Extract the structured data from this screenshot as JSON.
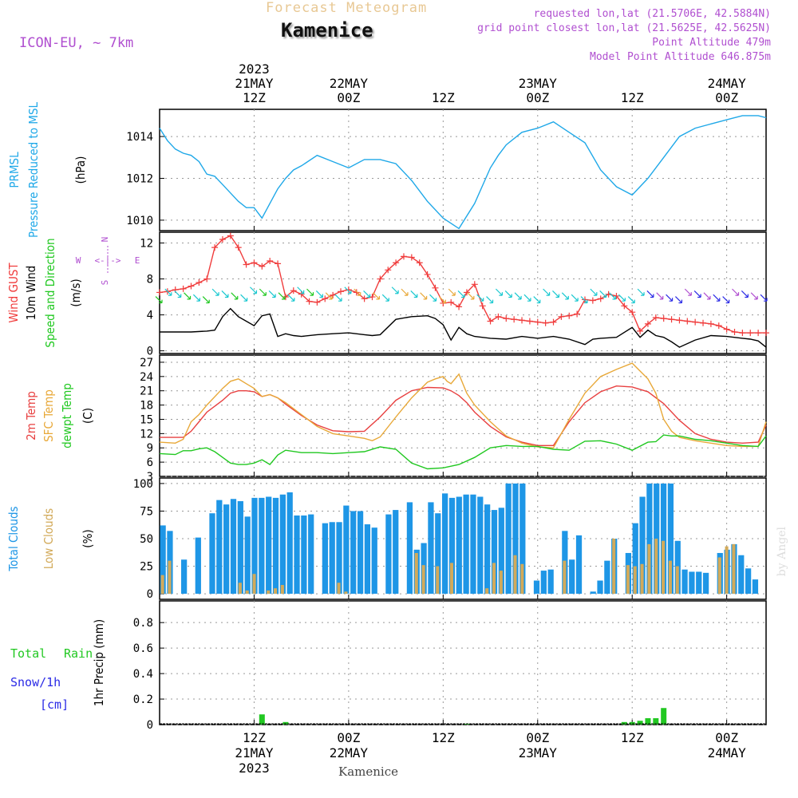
{
  "header": {
    "title": "Forecast Meteogram",
    "location": "Kamenice",
    "model": "ICON-EU, ~ 7km",
    "requested": "requested lon,lat (21.5706E, 42.5884N)",
    "gridpoint": "grid point closest lon,lat (21.5625E, 42.5625N)",
    "altitude": "Point Altitude 479m",
    "model_altitude": "Model Point Altitude 646.875m",
    "credit": "by Angel",
    "footer": "Kamenice"
  },
  "time_axis": {
    "top_labels": [
      {
        "hour": 12,
        "lines": [
          "2023",
          "21MAY",
          "12Z"
        ]
      },
      {
        "hour": 24,
        "lines": [
          "22MAY",
          "00Z"
        ]
      },
      {
        "hour": 36,
        "lines": [
          "12Z"
        ]
      },
      {
        "hour": 48,
        "lines": [
          "23MAY",
          "00Z"
        ]
      },
      {
        "hour": 60,
        "lines": [
          "12Z"
        ]
      },
      {
        "hour": 72,
        "lines": [
          "24MAY",
          "00Z"
        ]
      }
    ],
    "bottom_labels": [
      {
        "hour": 12,
        "lines": [
          "12Z",
          "21MAY",
          "2023"
        ]
      },
      {
        "hour": 24,
        "lines": [
          "00Z",
          "22MAY"
        ]
      },
      {
        "hour": 36,
        "lines": [
          "12Z"
        ]
      },
      {
        "hour": 48,
        "lines": [
          "00Z",
          "23MAY"
        ]
      },
      {
        "hour": 60,
        "lines": [
          "12Z"
        ]
      },
      {
        "hour": 72,
        "lines": [
          "00Z",
          "24MAY"
        ]
      }
    ]
  },
  "colors": {
    "pressure": "#1fa8e8",
    "gust": "#f03c3c",
    "wind": "#000000",
    "temp": "#e84040",
    "sfc": "#e8a838",
    "dew": "#20c820",
    "total_clouds": "#1e96e6",
    "low_clouds": "#d2aa5a",
    "rain": "#22c822",
    "purple": "#b04fd0",
    "snow": "#2a2ae6"
  },
  "chart_data": [
    {
      "panel": "pressure",
      "type": "line",
      "ylabels": [
        "PRMSL",
        "Pressure Reduced to MSL"
      ],
      "unit": "(hPa)",
      "yticks": [
        1010,
        1012,
        1014
      ],
      "ylim": [
        1009.5,
        1015.3
      ],
      "series": [
        {
          "name": "PRMSL",
          "x": [
            0,
            1,
            2,
            3,
            4,
            5,
            6,
            7,
            8,
            9,
            10,
            11,
            12,
            13,
            14,
            15,
            16,
            17,
            18,
            20,
            22,
            24,
            26,
            28,
            30,
            32,
            34,
            36,
            38,
            40,
            42,
            43,
            44,
            46,
            48,
            50,
            52,
            54,
            56,
            58,
            60,
            62,
            64,
            66,
            68,
            70,
            72,
            74,
            76,
            77
          ],
          "values": [
            1014.4,
            1013.8,
            1013.4,
            1013.2,
            1013.1,
            1012.8,
            1012.2,
            1012.1,
            1011.7,
            1011.3,
            1010.9,
            1010.6,
            1010.6,
            1010.1,
            1010.8,
            1011.5,
            1012.0,
            1012.4,
            1012.6,
            1013.1,
            1012.8,
            1012.5,
            1012.9,
            1012.9,
            1012.7,
            1011.9,
            1010.9,
            1010.1,
            1009.6,
            1010.8,
            1012.5,
            1013.1,
            1013.6,
            1014.2,
            1014.4,
            1014.7,
            1014.2,
            1013.7,
            1012.4,
            1011.6,
            1011.2,
            1012.0,
            1013.0,
            1014.0,
            1014.4,
            1014.6,
            1014.8,
            1015.0,
            1015.0,
            1014.9
          ]
        }
      ]
    },
    {
      "panel": "wind",
      "type": "line",
      "ylabels": [
        "Wind GUST",
        "10m Wind",
        "Speed and Direction"
      ],
      "unit": "(m/s)",
      "yticks": [
        0,
        4,
        8,
        12
      ],
      "ylim": [
        -0.3,
        13.2
      ],
      "compass": {
        "n": "N",
        "s": "S",
        "e": "E",
        "w": "W"
      },
      "series": [
        {
          "name": "Wind GUST",
          "x": [
            0,
            1,
            2,
            3,
            4,
            5,
            6,
            7,
            8,
            9,
            10,
            11,
            12,
            13,
            14,
            15,
            16,
            17,
            18,
            19,
            20,
            21,
            22,
            23,
            24,
            25,
            26,
            27,
            28,
            29,
            30,
            31,
            32,
            33,
            34,
            35,
            36,
            37,
            38,
            39,
            40,
            41,
            42,
            43,
            44,
            45,
            46,
            47,
            48,
            49,
            50,
            51,
            52,
            53,
            54,
            55,
            56,
            57,
            58,
            59,
            60,
            61,
            62,
            63,
            64,
            65,
            66,
            67,
            68,
            69,
            70,
            71,
            72,
            73,
            74,
            75,
            76,
            77
          ],
          "values": [
            6.5,
            6.6,
            6.8,
            6.9,
            7.2,
            7.6,
            8.0,
            11.5,
            12.4,
            12.8,
            11.5,
            9.6,
            9.8,
            9.4,
            10.0,
            9.7,
            6.0,
            6.7,
            6.3,
            5.5,
            5.4,
            5.8,
            6.2,
            6.6,
            6.8,
            6.5,
            5.8,
            6.0,
            8.0,
            9.0,
            9.8,
            10.5,
            10.4,
            9.8,
            8.5,
            7.0,
            5.3,
            5.4,
            4.9,
            6.5,
            7.4,
            5.0,
            3.3,
            3.8,
            3.6,
            3.5,
            3.4,
            3.3,
            3.2,
            3.1,
            3.2,
            3.8,
            3.9,
            4.1,
            5.7,
            5.6,
            5.8,
            6.3,
            6.1,
            5.0,
            4.3,
            2.2,
            3.0,
            3.7,
            3.6,
            3.5,
            3.4,
            3.3,
            3.2,
            3.1,
            3.0,
            2.8,
            2.4,
            2.1,
            2.0,
            2.0,
            2.0,
            2.0
          ]
        },
        {
          "name": "10m Wind",
          "x": [
            0,
            2,
            4,
            6,
            7,
            8,
            9,
            10,
            11,
            12,
            13,
            14,
            15,
            16,
            17,
            18,
            20,
            22,
            24,
            26,
            27,
            28,
            30,
            32,
            34,
            35,
            36,
            37,
            38,
            39,
            40,
            42,
            44,
            46,
            48,
            50,
            52,
            54,
            55,
            56,
            58,
            60,
            61,
            62,
            63,
            64,
            65,
            66,
            68,
            70,
            72,
            74,
            75,
            76,
            77
          ],
          "values": [
            2.1,
            2.1,
            2.1,
            2.2,
            2.3,
            3.8,
            4.7,
            3.8,
            3.3,
            2.8,
            3.9,
            4.1,
            1.6,
            1.9,
            1.7,
            1.6,
            1.8,
            1.9,
            2.0,
            1.8,
            1.7,
            1.8,
            3.5,
            3.8,
            3.9,
            3.6,
            2.9,
            1.2,
            2.6,
            1.9,
            1.6,
            1.4,
            1.3,
            1.6,
            1.4,
            1.6,
            1.3,
            0.7,
            1.3,
            1.4,
            1.5,
            2.6,
            1.5,
            2.3,
            1.7,
            1.5,
            1.0,
            0.4,
            1.2,
            1.7,
            1.6,
            1.4,
            1.3,
            1.1,
            0.4
          ]
        }
      ]
    },
    {
      "panel": "temperature",
      "type": "line",
      "ylabels": [
        "2m Temp",
        "SFC Temp",
        "dewpt Temp"
      ],
      "unit": "(C)",
      "yticks": [
        3,
        6,
        9,
        12,
        15,
        18,
        21,
        24,
        27
      ],
      "ylim": [
        3,
        28.5
      ],
      "series": [
        {
          "name": "2m Temp",
          "x": [
            0,
            3,
            4,
            5,
            6,
            8,
            9,
            10,
            11,
            12,
            13,
            14,
            15,
            16,
            18,
            20,
            22,
            24,
            26,
            28,
            30,
            32,
            34,
            36,
            37,
            38,
            39,
            40,
            42,
            44,
            46,
            48,
            50,
            52,
            54,
            56,
            58,
            60,
            62,
            64,
            66,
            68,
            70,
            72,
            74,
            76,
            77
          ],
          "values": [
            11.2,
            11.2,
            12.5,
            14.5,
            16.5,
            19.0,
            20.5,
            21.0,
            21.0,
            20.8,
            19.8,
            20.2,
            19.5,
            18.2,
            15.8,
            13.8,
            12.6,
            12.4,
            12.5,
            15.5,
            19.0,
            21.0,
            21.7,
            21.6,
            21.0,
            20.0,
            18.5,
            16.5,
            13.5,
            11.3,
            10.2,
            9.5,
            9.5,
            14.5,
            18.5,
            20.8,
            22.0,
            21.8,
            20.8,
            18.3,
            14.8,
            12.0,
            10.8,
            10.2,
            10.0,
            10.2,
            13.8
          ]
        },
        {
          "name": "SFC Temp",
          "x": [
            0,
            2,
            3,
            4,
            5,
            6,
            8,
            9,
            10,
            11,
            12,
            13,
            14,
            15,
            16,
            18,
            20,
            22,
            24,
            26,
            27,
            28,
            30,
            32,
            34,
            35,
            36,
            36.5,
            37,
            38,
            39,
            40,
            42,
            44,
            46,
            48,
            50,
            52,
            54,
            56,
            58,
            60,
            62,
            63,
            64,
            65,
            66,
            68,
            70,
            72,
            74,
            76,
            77
          ],
          "values": [
            10.2,
            10.0,
            10.8,
            14.5,
            16.0,
            18.0,
            21.5,
            23.0,
            23.5,
            22.5,
            21.5,
            19.8,
            20.2,
            19.5,
            18.5,
            16.0,
            13.5,
            12.0,
            11.5,
            11.0,
            10.5,
            11.3,
            15.5,
            19.5,
            22.8,
            23.5,
            24.0,
            23.0,
            22.5,
            24.5,
            20.5,
            18.0,
            14.5,
            11.5,
            10.0,
            9.2,
            9.0,
            15.0,
            20.5,
            24.0,
            25.5,
            26.8,
            23.5,
            20.5,
            15.0,
            12.5,
            11.2,
            10.5,
            10.0,
            9.5,
            9.3,
            9.3,
            14.5
          ]
        },
        {
          "name": "dewpt Temp",
          "x": [
            0,
            2,
            3,
            4,
            5,
            6,
            7,
            8,
            9,
            10,
            11,
            12,
            13,
            14,
            15,
            16,
            18,
            20,
            22,
            24,
            26,
            28,
            30,
            32,
            34,
            36,
            38,
            40,
            42,
            44,
            46,
            48,
            50,
            52,
            54,
            56,
            58,
            60,
            62,
            63,
            64,
            65,
            66,
            68,
            70,
            72,
            74,
            76,
            77
          ],
          "values": [
            7.8,
            7.6,
            8.4,
            8.4,
            8.8,
            9.0,
            8.2,
            7.0,
            5.8,
            5.5,
            5.5,
            5.8,
            6.5,
            5.5,
            7.5,
            8.5,
            8.0,
            8.0,
            7.8,
            8.0,
            8.2,
            9.2,
            8.7,
            5.8,
            4.6,
            4.8,
            5.5,
            7.0,
            9.0,
            9.5,
            9.3,
            9.3,
            8.7,
            8.5,
            10.4,
            10.5,
            9.8,
            8.5,
            10.2,
            10.3,
            11.7,
            11.5,
            11.5,
            10.8,
            10.5,
            10.0,
            9.5,
            9.3,
            11.5
          ]
        }
      ]
    },
    {
      "panel": "clouds",
      "type": "bar",
      "ylabels": [
        "Total Clouds",
        "Low Clouds"
      ],
      "unit": "(%)",
      "yticks": [
        0,
        25,
        50,
        75,
        100
      ],
      "ylim": [
        -5,
        105
      ],
      "series": [
        {
          "name": "Total Clouds",
          "values": [
            62,
            57,
            0,
            31,
            0,
            51,
            0,
            73,
            85,
            81,
            86,
            84,
            70,
            87,
            87,
            88,
            87,
            90,
            92,
            71,
            71,
            72,
            0,
            64,
            65,
            65,
            80,
            75,
            75,
            63,
            60,
            0,
            72,
            76,
            0,
            83,
            40,
            46,
            83,
            73,
            91,
            87,
            88,
            90,
            90,
            88,
            81,
            76,
            78,
            100,
            100,
            100,
            0,
            12,
            21,
            22,
            0,
            57,
            31,
            53,
            0,
            2,
            12,
            30,
            50,
            0,
            37,
            64,
            88,
            100,
            100,
            100,
            100,
            48,
            22,
            20,
            20,
            19,
            0,
            37,
            40,
            45,
            35,
            23,
            13,
            0
          ]
        },
        {
          "name": "Low Clouds",
          "values": [
            17,
            30,
            0,
            0,
            0,
            0,
            0,
            0,
            0,
            0,
            0,
            10,
            3,
            18,
            0,
            3,
            5,
            8,
            0,
            0,
            0,
            0,
            0,
            0,
            0,
            10,
            2,
            0,
            0,
            0,
            0,
            0,
            0,
            0,
            0,
            0,
            37,
            26,
            0,
            25,
            0,
            28,
            0,
            0,
            0,
            0,
            5,
            28,
            21,
            0,
            35,
            27,
            0,
            0,
            0,
            0,
            0,
            30,
            0,
            0,
            0,
            0,
            0,
            0,
            50,
            0,
            26,
            25,
            27,
            45,
            50,
            48,
            30,
            25,
            0,
            0,
            0,
            0,
            0,
            33,
            43,
            45,
            0,
            0,
            0,
            0
          ]
        }
      ]
    },
    {
      "panel": "precip",
      "type": "bar",
      "ylabels": [
        "1hr Precip (mm)"
      ],
      "legend": {
        "total": "Total",
        "rain": "Rain",
        "snow": "Snow/1h",
        "snow_unit": "[cm]"
      },
      "yticks": [
        0,
        0.2,
        0.4,
        0.6,
        0.8
      ],
      "ylim": [
        0,
        0.97
      ],
      "series": [
        {
          "name": "Rain",
          "hours": [
            13,
            16,
            39,
            59,
            60,
            61,
            62,
            63,
            64
          ],
          "values": [
            0.08,
            0.02,
            0.005,
            0.02,
            0.02,
            0.03,
            0.05,
            0.05,
            0.13
          ]
        }
      ]
    }
  ]
}
